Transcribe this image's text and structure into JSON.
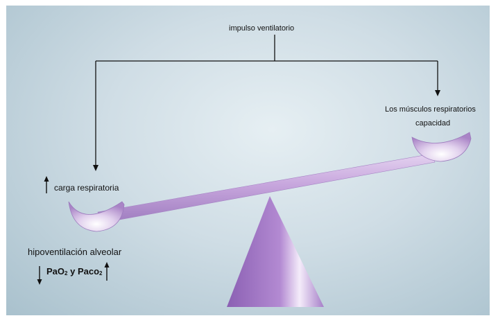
{
  "labels": {
    "drive": "impulso ventilatorio",
    "muscles": "Los músculos respiratorios",
    "capacity": "capacidad",
    "load": "carga respiratoria",
    "hypoventilation": "hipoventilación alveolar",
    "gas_pao": "PaO",
    "gas_pao_sub": "2",
    "gas_y": " y ",
    "gas_paco": "Paco",
    "gas_paco_sub": "2"
  },
  "indicators": {
    "load": "up",
    "pao2": "down",
    "paco2": "up"
  },
  "colors": {
    "background": "#d6e3ea",
    "lever": "#c7a6dd",
    "fulcrum": "#9a6fc0",
    "line": "#111111"
  }
}
